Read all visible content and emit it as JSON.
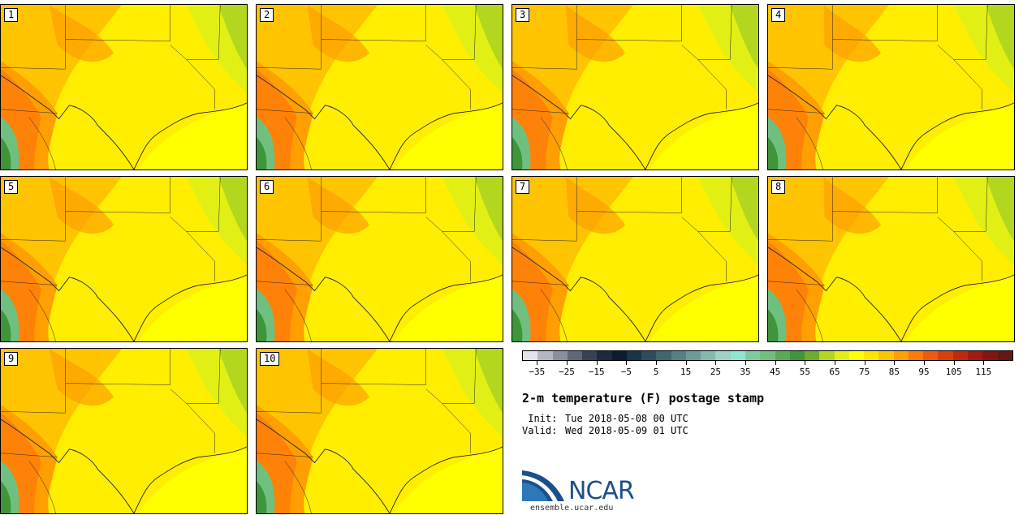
{
  "figure": {
    "title": "2-m temperature (F) postage stamp",
    "init_label": " Init:",
    "init_value": "Tue 2018-05-08 00 UTC",
    "valid_label": "Valid:",
    "valid_value": "Wed 2018-05-09 01 UTC",
    "logo_text": "NCAR",
    "url": "ensemble.ucar.edu"
  },
  "panels": [
    "1",
    "2",
    "3",
    "4",
    "5",
    "6",
    "7",
    "8",
    "9",
    "10"
  ],
  "colorbar": {
    "colors": [
      "#e1e2ea",
      "#b4b7c3",
      "#8a8f9e",
      "#5f6778",
      "#364256",
      "#1d2a3d",
      "#0d1b2e",
      "#1a3346",
      "#2d4d5c",
      "#41666f",
      "#568184",
      "#6b9c9a",
      "#84b8b0",
      "#9dd2c3",
      "#8fe6d0",
      "#7ccca2",
      "#6fc07f",
      "#5aaa55",
      "#3e9638",
      "#6bae2c",
      "#b3d61f",
      "#e2ef14",
      "#ffff00",
      "#ffe600",
      "#ffc400",
      "#ff9f00",
      "#ff7a0a",
      "#f05a10",
      "#d93e0d",
      "#bf290c",
      "#a11d0f",
      "#821712",
      "#641713"
    ],
    "tick_labels": [
      "−35",
      "−25",
      "−15",
      "−5",
      "5",
      "15",
      "25",
      "35",
      "45",
      "55",
      "65",
      "75",
      "85",
      "95",
      "105",
      "115"
    ]
  }
}
